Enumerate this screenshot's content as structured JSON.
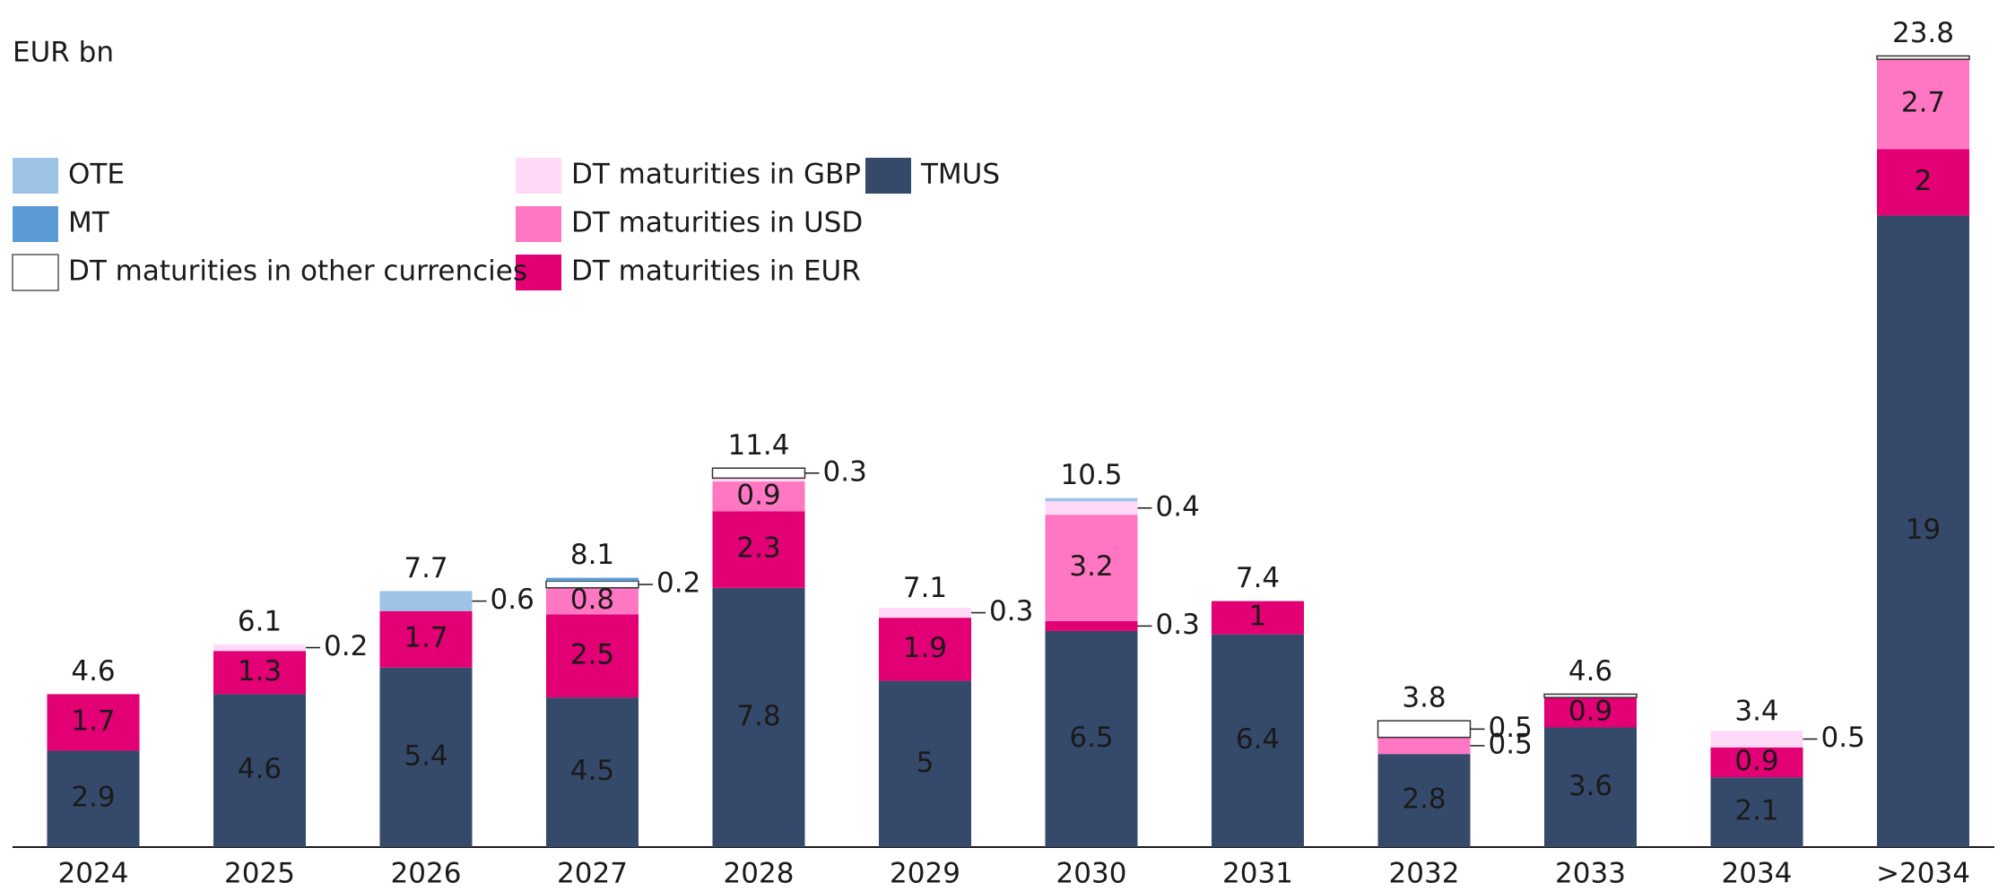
{
  "chart_data": {
    "type": "stacked_bar",
    "y_axis_label": "EUR bn",
    "categories": [
      "2024",
      "2025",
      "2026",
      "2027",
      "2028",
      "2029",
      "2030",
      "2031",
      "2032",
      "2033",
      "2034",
      ">2034"
    ],
    "series": [
      {
        "name": "TMUS",
        "color": "#354a6b",
        "values": [
          2.9,
          4.6,
          5.4,
          4.5,
          7.8,
          5.0,
          6.5,
          6.4,
          2.8,
          3.6,
          2.1,
          19.0
        ]
      },
      {
        "name": "DT maturities in EUR",
        "color": "#e20074",
        "values": [
          1.7,
          1.3,
          1.7,
          2.5,
          2.3,
          1.9,
          0.3,
          1.0,
          null,
          0.9,
          0.9,
          2.0
        ]
      },
      {
        "name": "DT maturities in USD",
        "color": "#ff77c3",
        "values": [
          null,
          null,
          null,
          0.8,
          0.9,
          null,
          3.2,
          null,
          0.5,
          null,
          null,
          2.7
        ]
      },
      {
        "name": "DT maturities in GBP",
        "color": "#ffd9f5",
        "values": [
          null,
          0.2,
          null,
          null,
          0.1,
          0.3,
          0.4,
          null,
          null,
          null,
          0.5,
          null
        ]
      },
      {
        "name": "DT maturities in other currencies",
        "color": "#ffffff",
        "values": [
          null,
          null,
          null,
          0.2,
          0.3,
          null,
          null,
          null,
          0.5,
          0.1,
          null,
          0.1
        ]
      },
      {
        "name": "MT",
        "color": "#5b9bd5",
        "values": [
          null,
          null,
          null,
          0.1,
          null,
          null,
          null,
          null,
          null,
          null,
          null,
          null
        ]
      },
      {
        "name": "OTE",
        "color": "#9dc3e6",
        "values": [
          null,
          null,
          0.6,
          null,
          null,
          null,
          0.1,
          null,
          null,
          null,
          null,
          null
        ]
      }
    ],
    "totals": [
      4.6,
      6.1,
      7.7,
      8.1,
      11.4,
      7.1,
      10.5,
      7.4,
      3.8,
      4.6,
      3.4,
      23.8
    ],
    "ylim": [
      0,
      24
    ]
  }
}
